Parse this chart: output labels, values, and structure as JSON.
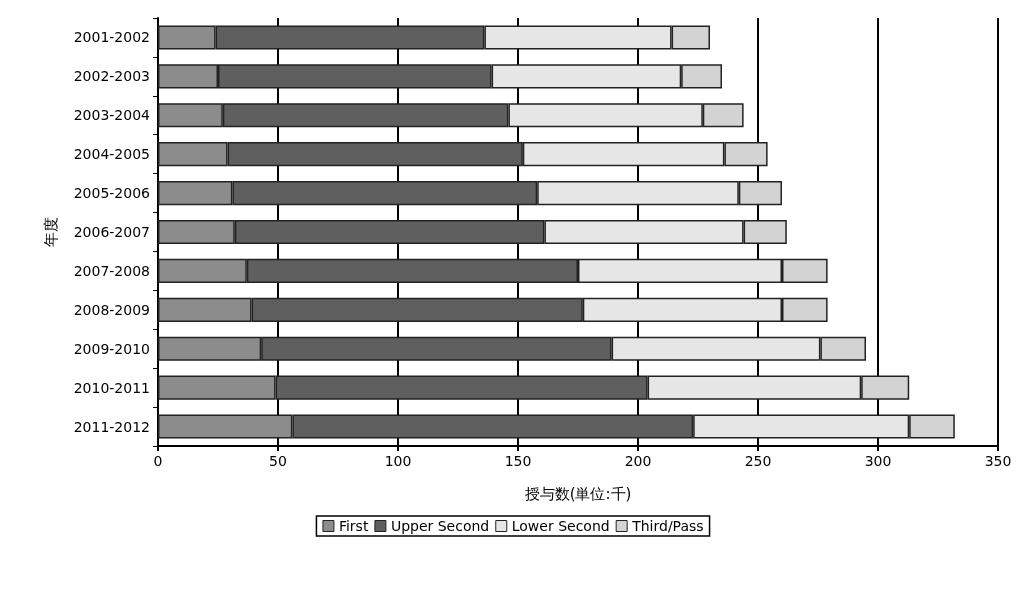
{
  "chart_data": {
    "type": "bar",
    "orientation": "horizontal",
    "stacked": true,
    "categories": [
      "2001-2002",
      "2002-2003",
      "2003-2004",
      "2004-2005",
      "2005-2006",
      "2006-2007",
      "2007-2008",
      "2008-2009",
      "2009-2010",
      "2010-2011",
      "2011-2012"
    ],
    "series": [
      {
        "name": "First",
        "color": "#8c8c8c",
        "values": [
          24,
          25,
          27,
          29,
          31,
          32,
          37,
          39,
          43,
          49,
          56
        ]
      },
      {
        "name": "Upper Second",
        "color": "#5f5f5f",
        "values": [
          112,
          114,
          119,
          123,
          127,
          129,
          138,
          138,
          146,
          155,
          167
        ]
      },
      {
        "name": "Lower Second",
        "color": "#e6e6e6",
        "values": [
          78,
          79,
          81,
          84,
          84,
          83,
          85,
          83,
          87,
          89,
          90
        ]
      },
      {
        "name": "Third/Pass",
        "color": "#d3d3d3",
        "values": [
          16,
          17,
          17,
          18,
          18,
          18,
          19,
          19,
          19,
          20,
          19
        ]
      }
    ],
    "xlim": [
      0,
      350
    ],
    "xticks": [
      0,
      50,
      100,
      150,
      200,
      250,
      300,
      350
    ],
    "xlabel": "授与数(単位:千)",
    "ylabel": "年度",
    "grid": "x",
    "legend": "bottom"
  }
}
